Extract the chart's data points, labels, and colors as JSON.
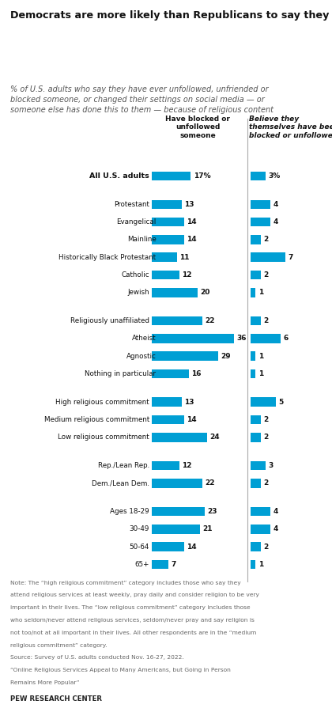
{
  "title": "Democrats are more likely than Republicans to say they have blocked or unfollowed someone because of religious content that user posted",
  "subtitle": "% of U.S. adults who say they have ever unfollowed, unfriended or\nblocked someone, or changed their settings on social media — or\nsomeone else has done this to them — because of religious content",
  "col1_header": "Have blocked or\nunfollowed\nsomeone",
  "col2_header": "Believe they\nthemselves have been\nblocked or unfollowed",
  "categories": [
    "All U.S. adults",
    "Protestant",
    "Evangelical",
    "Mainline",
    "Historically Black Protestant",
    "Catholic",
    "Jewish",
    "Religiously unaffiliated",
    "Atheist",
    "Agnostic",
    "Nothing in particular",
    "High religious commitment",
    "Medium religious commitment",
    "Low religious commitment",
    "Rep./Lean Rep.",
    "Dem./Lean Dem.",
    "Ages 18-29",
    "30-49",
    "50-64",
    "65+"
  ],
  "indented": [
    false,
    false,
    true,
    true,
    true,
    false,
    false,
    false,
    true,
    true,
    true,
    false,
    false,
    false,
    false,
    false,
    false,
    false,
    false,
    false
  ],
  "values1": [
    17,
    13,
    14,
    14,
    11,
    12,
    20,
    22,
    36,
    29,
    16,
    13,
    14,
    24,
    12,
    22,
    23,
    21,
    14,
    7
  ],
  "values2": [
    3,
    4,
    4,
    2,
    7,
    2,
    1,
    2,
    6,
    1,
    1,
    5,
    2,
    2,
    3,
    2,
    4,
    4,
    2,
    1
  ],
  "show_pct": [
    true,
    false,
    false,
    false,
    false,
    false,
    false,
    false,
    false,
    false,
    false,
    false,
    false,
    false,
    false,
    false,
    false,
    false,
    false,
    false
  ],
  "bar_color": "#009fd4",
  "group_breaks_before": [
    1,
    7,
    11,
    14,
    16
  ],
  "note": "Note: The “high religious commitment” category includes those who say they\nattend religious services at least weekly, pray daily and consider religion to be very\nimportant in their lives. The “low religious commitment” category includes those\nwho seldom/never attend religious services, seldom/never pray and say religion is\nnot too/not at all important in their lives. All other respondents are in the “medium\nreligious commitment” category.\nSource: Survey of U.S. adults conducted Nov. 16-27, 2022.\n“Online Religious Services Appeal to Many Americans, but Going in Person\nRemains More Popular”",
  "source_label": "PEW RESEARCH CENTER",
  "bg_color": "#ffffff",
  "divider_color": "#aaaaaa",
  "text_color": "#111111",
  "note_color": "#666666"
}
